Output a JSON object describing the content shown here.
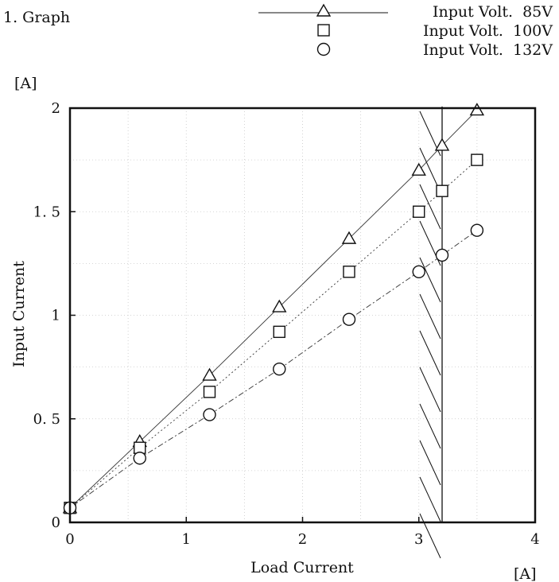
{
  "header": {
    "caption": "1. Graph"
  },
  "chart_data": {
    "type": "line",
    "xlabel": "Load Current",
    "ylabel": "Input Current",
    "xunit": "[A]",
    "yunit": "[A]",
    "xlim": [
      0,
      4
    ],
    "ylim": [
      0,
      2
    ],
    "xticks": [
      0,
      1,
      2,
      3,
      4
    ],
    "yticks": [
      0,
      0.5,
      1,
      1.5,
      2
    ],
    "xtick_labels": [
      "0",
      "1",
      "2",
      "3",
      "4"
    ],
    "ytick_labels": [
      "0",
      "0. 5",
      "1",
      "1. 5",
      "2"
    ],
    "grid": true,
    "legend_position": "top-right",
    "limit_line_x": 3.2,
    "series": [
      {
        "name": "Input Volt.  85V",
        "marker": "triangle",
        "line": "solid",
        "x": [
          0,
          0.6,
          1.2,
          1.8,
          2.4,
          3.0,
          3.2,
          3.5
        ],
        "y": [
          0.07,
          0.39,
          0.71,
          1.04,
          1.37,
          1.7,
          1.82,
          1.99
        ]
      },
      {
        "name": "Input Volt.  100V",
        "marker": "square",
        "line": "dotted",
        "x": [
          0,
          0.6,
          1.2,
          1.8,
          2.4,
          3.0,
          3.2,
          3.5
        ],
        "y": [
          0.07,
          0.36,
          0.63,
          0.92,
          1.21,
          1.5,
          1.6,
          1.75
        ]
      },
      {
        "name": "Input Volt.  132V",
        "marker": "circle",
        "line": "dashdot",
        "x": [
          0,
          0.6,
          1.2,
          1.8,
          2.4,
          3.0,
          3.2,
          3.5
        ],
        "y": [
          0.07,
          0.31,
          0.52,
          0.74,
          0.98,
          1.21,
          1.29,
          1.41
        ]
      }
    ]
  }
}
